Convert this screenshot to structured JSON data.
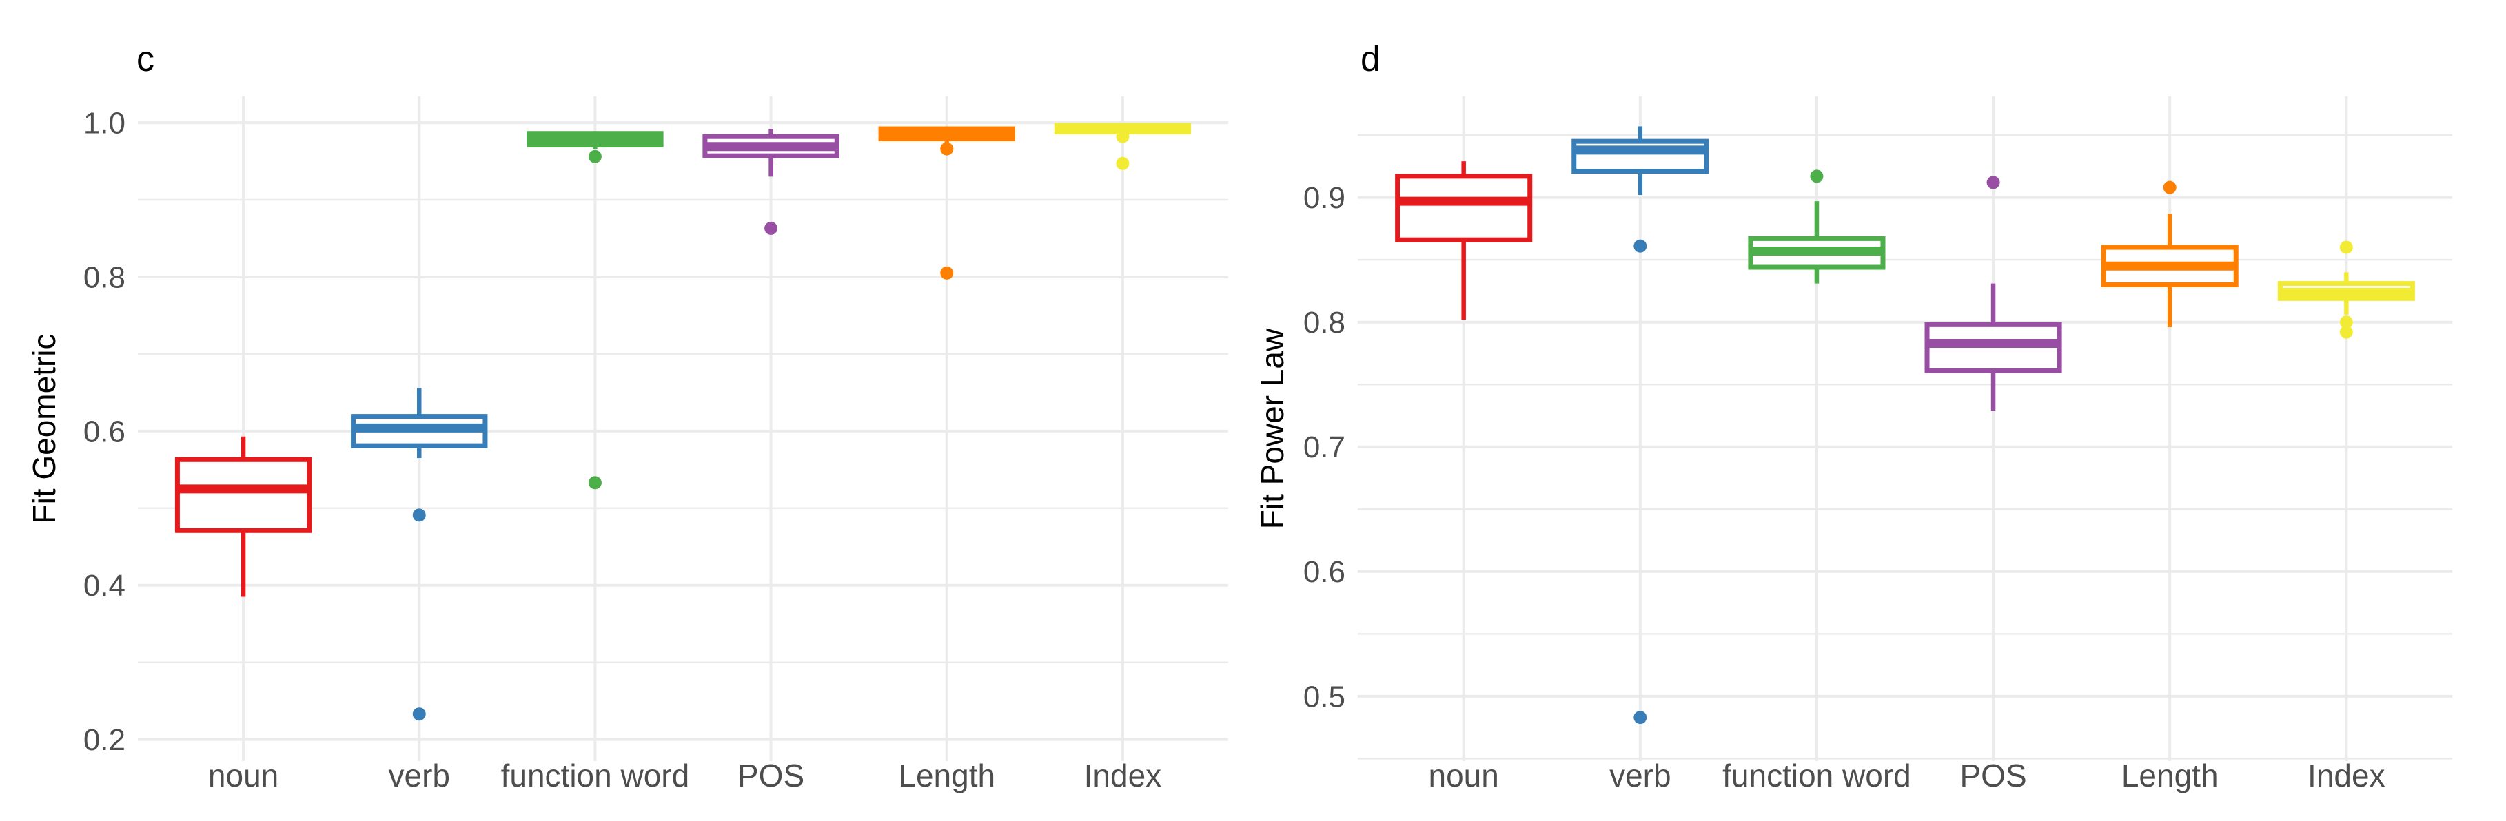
{
  "figure": {
    "background": "#FFFFFF",
    "grid_color": "#EBEBEB",
    "tick_label_color": "#4D4D4D",
    "title_color": "#000000"
  },
  "chart_data": [
    {
      "type": "boxplot",
      "panel_tag": "c",
      "ylabel": "Fit Geometric",
      "xlabel": "",
      "grid": true,
      "legend": "none",
      "categories": [
        "noun",
        "verb",
        "function word",
        "POS",
        "Length",
        "Index"
      ],
      "colors": [
        "#E41A1C",
        "#377EB8",
        "#4DAF4A",
        "#984EA3",
        "#FF7F00",
        "#F2EB33"
      ],
      "y_ticks": [
        0.2,
        0.4,
        0.6,
        0.8,
        1.0
      ],
      "y_tick_labels": [
        "0.2",
        "0.4",
        "0.6",
        "0.8",
        "1.0"
      ],
      "y_minor_ticks": [
        0.3,
        0.5,
        0.7,
        0.9
      ],
      "ylim": [
        0.172,
        1.034
      ],
      "series": [
        {
          "category": "noun",
          "whisker_low": 0.385,
          "q1": 0.471,
          "median": 0.525,
          "q3": 0.563,
          "whisker_high": 0.593,
          "outliers": []
        },
        {
          "category": "verb",
          "whisker_low": 0.565,
          "q1": 0.581,
          "median": 0.604,
          "q3": 0.619,
          "whisker_high": 0.656,
          "outliers": [
            0.491,
            0.233
          ]
        },
        {
          "category": "function word",
          "whisker_low": 0.966,
          "q1": 0.971,
          "median": 0.978,
          "q3": 0.986,
          "whisker_high": 0.989,
          "outliers": [
            0.956,
            0.533
          ]
        },
        {
          "category": "POS",
          "whisker_low": 0.93,
          "q1": 0.957,
          "median": 0.969,
          "q3": 0.982,
          "whisker_high": 0.992,
          "outliers": [
            0.863
          ]
        },
        {
          "category": "Length",
          "whisker_low": 0.972,
          "q1": 0.979,
          "median": 0.986,
          "q3": 0.992,
          "whisker_high": 0.995,
          "outliers": [
            0.966,
            0.805
          ]
        },
        {
          "category": "Index",
          "whisker_low": 0.984,
          "q1": 0.988,
          "median": 0.992,
          "q3": 0.9965,
          "whisker_high": 0.998,
          "outliers": [
            0.982,
            0.947
          ]
        }
      ]
    },
    {
      "type": "boxplot",
      "panel_tag": "d",
      "ylabel": "Fit Power Law",
      "xlabel": "",
      "grid": true,
      "legend": "none",
      "categories": [
        "noun",
        "verb",
        "function word",
        "POS",
        "Length",
        "Index"
      ],
      "colors": [
        "#E41A1C",
        "#377EB8",
        "#4DAF4A",
        "#984EA3",
        "#FF7F00",
        "#F2EB33"
      ],
      "y_ticks": [
        0.5,
        0.6,
        0.7,
        0.8,
        0.9
      ],
      "y_tick_labels": [
        "0.5",
        "0.6",
        "0.7",
        "0.8",
        "0.9"
      ],
      "y_minor_ticks": [
        0.45,
        0.55,
        0.65,
        0.75,
        0.85,
        0.95
      ],
      "ylim": [
        0.448,
        0.981
      ],
      "series": [
        {
          "category": "noun",
          "whisker_low": 0.802,
          "q1": 0.866,
          "median": 0.897,
          "q3": 0.917,
          "whisker_high": 0.929,
          "outliers": []
        },
        {
          "category": "verb",
          "whisker_low": 0.902,
          "q1": 0.921,
          "median": 0.938,
          "q3": 0.945,
          "whisker_high": 0.957,
          "outliers": [
            0.861,
            0.483
          ]
        },
        {
          "category": "function word",
          "whisker_low": 0.831,
          "q1": 0.844,
          "median": 0.857,
          "q3": 0.867,
          "whisker_high": 0.897,
          "outliers": [
            0.917
          ]
        },
        {
          "category": "POS",
          "whisker_low": 0.729,
          "q1": 0.761,
          "median": 0.783,
          "q3": 0.798,
          "whisker_high": 0.831,
          "outliers": [
            0.912
          ]
        },
        {
          "category": "Length",
          "whisker_low": 0.796,
          "q1": 0.83,
          "median": 0.845,
          "q3": 0.86,
          "whisker_high": 0.887,
          "outliers": [
            0.908
          ]
        },
        {
          "category": "Index",
          "whisker_low": 0.806,
          "q1": 0.819,
          "median": 0.824,
          "q3": 0.831,
          "whisker_high": 0.84,
          "outliers": [
            0.86,
            0.8,
            0.792
          ]
        }
      ]
    }
  ]
}
